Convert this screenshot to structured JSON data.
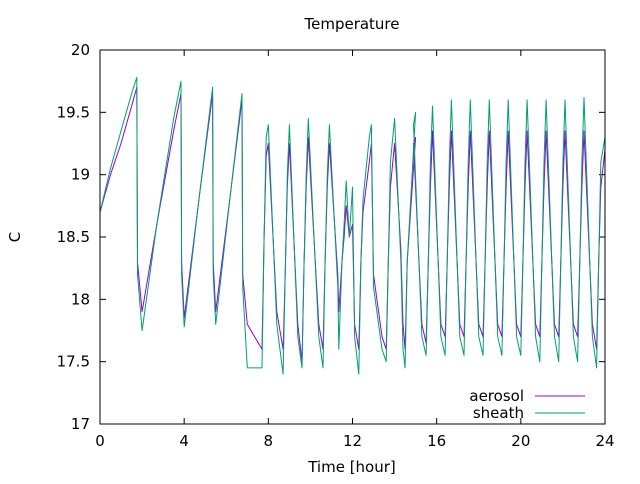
{
  "chart_data": {
    "type": "line",
    "title": "Temperature",
    "xlabel": "Time [hour]",
    "ylabel": "C",
    "xlim": [
      0,
      24
    ],
    "ylim": [
      17,
      20
    ],
    "xticks": [
      0,
      4,
      8,
      12,
      16,
      20,
      24
    ],
    "xtick_labels": [
      "0",
      "4",
      "8",
      "12",
      "16",
      "20",
      "24"
    ],
    "yticks": [
      17,
      17.5,
      18,
      18.5,
      19,
      19.5,
      20
    ],
    "ytick_labels": [
      "17",
      "17.5",
      "18",
      "18.5",
      "19",
      "19.5",
      "20"
    ],
    "grid": false,
    "legend_position": "bottom-right",
    "series": [
      {
        "name": "aerosol",
        "color": "#9400d3",
        "x": [
          0,
          0.5,
          1.0,
          1.5,
          1.75,
          1.78,
          2.0,
          2.7,
          3.5,
          3.85,
          3.88,
          4.0,
          4.7,
          5.35,
          5.38,
          5.5,
          6.2,
          6.75,
          6.78,
          7.0,
          7.7,
          7.8,
          7.9,
          8.0,
          8.4,
          8.7,
          8.8,
          8.9,
          9.0,
          9.4,
          9.6,
          9.7,
          9.8,
          9.9,
          10.4,
          10.6,
          10.7,
          10.8,
          10.9,
          11.3,
          11.35,
          11.5,
          11.6,
          11.7,
          11.85,
          12.0,
          12.1,
          12.3,
          12.4,
          12.5,
          12.8,
          12.9,
          13.0,
          13.4,
          13.6,
          13.7,
          13.8,
          14.0,
          14.3,
          14.4,
          14.5,
          14.6,
          15.0,
          14.9,
          15.3,
          15.5,
          15.6,
          15.7,
          15.8,
          16.2,
          16.4,
          16.5,
          16.6,
          16.7,
          17.1,
          17.3,
          17.4,
          17.5,
          17.6,
          18.0,
          18.2,
          18.3,
          18.4,
          18.5,
          18.9,
          19.1,
          19.2,
          19.3,
          19.4,
          19.8,
          20.0,
          20.1,
          20.2,
          20.3,
          20.7,
          20.9,
          21.0,
          21.1,
          21.2,
          21.6,
          21.8,
          21.9,
          22.0,
          22.1,
          22.5,
          22.7,
          22.8,
          22.9,
          23.0,
          23.4,
          23.6,
          23.7,
          23.8,
          24.0
        ],
        "y": [
          18.7,
          19.0,
          19.25,
          19.55,
          19.7,
          18.3,
          17.9,
          18.6,
          19.35,
          19.65,
          18.3,
          17.85,
          18.8,
          19.65,
          18.3,
          17.9,
          18.85,
          19.6,
          18.2,
          17.8,
          17.6,
          18.5,
          19.15,
          19.25,
          17.9,
          17.6,
          18.2,
          18.9,
          19.25,
          17.8,
          17.5,
          18.3,
          18.9,
          19.3,
          17.8,
          17.6,
          18.3,
          18.9,
          19.25,
          18.2,
          17.9,
          18.3,
          18.5,
          18.75,
          18.5,
          18.6,
          17.8,
          17.6,
          18.3,
          18.7,
          19.1,
          19.25,
          18.2,
          17.7,
          17.6,
          18.3,
          18.9,
          19.25,
          18.4,
          17.8,
          17.6,
          18.3,
          19.3,
          19.25,
          17.8,
          17.65,
          18.3,
          18.9,
          19.35,
          17.8,
          17.7,
          18.3,
          18.9,
          19.35,
          17.8,
          17.7,
          18.3,
          18.9,
          19.35,
          17.8,
          17.7,
          18.3,
          18.9,
          19.35,
          17.8,
          17.7,
          18.3,
          18.9,
          19.35,
          17.8,
          17.7,
          18.3,
          18.9,
          19.35,
          17.8,
          17.7,
          18.3,
          18.9,
          19.35,
          17.8,
          17.7,
          18.3,
          18.9,
          19.35,
          17.8,
          17.7,
          18.3,
          18.9,
          19.35,
          17.8,
          17.6,
          18.3,
          18.9,
          19.2
        ]
      },
      {
        "name": "sheath",
        "color": "#009e73",
        "x": [
          0,
          0.5,
          1.0,
          1.5,
          1.75,
          1.78,
          2.0,
          2.7,
          3.5,
          3.85,
          3.88,
          4.0,
          4.7,
          5.35,
          5.38,
          5.5,
          6.2,
          6.75,
          6.78,
          7.0,
          7.7,
          7.8,
          7.9,
          8.0,
          8.4,
          8.7,
          8.8,
          8.9,
          9.0,
          9.4,
          9.6,
          9.7,
          9.8,
          9.9,
          10.4,
          10.6,
          10.7,
          10.8,
          10.9,
          11.3,
          11.35,
          11.5,
          11.6,
          11.7,
          11.85,
          12.0,
          12.1,
          12.3,
          12.4,
          12.5,
          12.8,
          12.9,
          13.0,
          13.4,
          13.6,
          13.7,
          13.8,
          14.0,
          14.3,
          14.4,
          14.5,
          14.6,
          15.0,
          14.9,
          15.3,
          15.5,
          15.6,
          15.7,
          15.8,
          16.2,
          16.4,
          16.5,
          16.6,
          16.7,
          17.1,
          17.3,
          17.4,
          17.5,
          17.6,
          18.0,
          18.2,
          18.3,
          18.4,
          18.5,
          18.9,
          19.1,
          19.2,
          19.3,
          19.4,
          19.8,
          20.0,
          20.1,
          20.2,
          20.3,
          20.7,
          20.9,
          21.0,
          21.1,
          21.2,
          21.6,
          21.8,
          21.9,
          22.0,
          22.1,
          22.5,
          22.7,
          22.8,
          22.9,
          23.0,
          23.4,
          23.6,
          23.7,
          23.8,
          24.0
        ],
        "y": [
          18.7,
          19.05,
          19.35,
          19.65,
          19.78,
          18.2,
          17.75,
          18.6,
          19.45,
          19.75,
          18.2,
          17.78,
          18.8,
          19.7,
          18.2,
          17.8,
          18.85,
          19.65,
          18.1,
          17.45,
          17.45,
          18.5,
          19.3,
          19.4,
          17.8,
          17.4,
          18.2,
          19.0,
          19.4,
          17.7,
          17.45,
          18.3,
          19.0,
          19.45,
          17.7,
          17.45,
          18.3,
          19.0,
          19.4,
          18.1,
          17.6,
          18.3,
          18.6,
          18.95,
          18.5,
          18.9,
          17.7,
          17.4,
          18.3,
          18.8,
          19.3,
          19.4,
          18.1,
          17.6,
          17.5,
          18.3,
          19.1,
          19.45,
          18.3,
          17.6,
          17.45,
          18.3,
          19.5,
          19.4,
          17.7,
          17.55,
          18.3,
          19.1,
          19.55,
          17.7,
          17.55,
          18.3,
          19.1,
          19.6,
          17.7,
          17.55,
          18.3,
          19.1,
          19.6,
          17.7,
          17.55,
          18.3,
          19.1,
          19.6,
          17.7,
          17.55,
          18.3,
          19.1,
          19.6,
          17.7,
          17.55,
          18.3,
          19.1,
          19.6,
          17.7,
          17.5,
          18.3,
          19.1,
          19.6,
          17.7,
          17.5,
          18.3,
          19.1,
          19.6,
          17.7,
          17.5,
          18.3,
          19.1,
          19.62,
          17.7,
          17.45,
          18.3,
          19.1,
          19.3
        ]
      }
    ]
  }
}
